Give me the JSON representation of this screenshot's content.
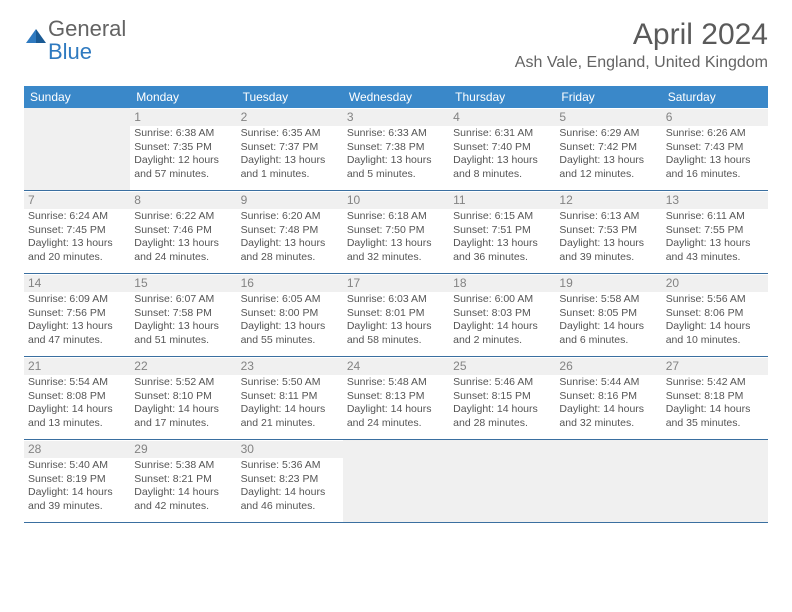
{
  "logo": {
    "part1": "General",
    "part2": "Blue"
  },
  "title": "April 2024",
  "location": "Ash Vale, England, United Kingdom",
  "header_color": "#3a88c9",
  "divider_color": "#3a6fa0",
  "daynum_bg": "#f0f0f0",
  "weekdays": [
    "Sunday",
    "Monday",
    "Tuesday",
    "Wednesday",
    "Thursday",
    "Friday",
    "Saturday"
  ],
  "start_offset": 1,
  "days": [
    {
      "n": 1,
      "sunrise": "6:38 AM",
      "sunset": "7:35 PM",
      "daylight": "12 hours and 57 minutes."
    },
    {
      "n": 2,
      "sunrise": "6:35 AM",
      "sunset": "7:37 PM",
      "daylight": "13 hours and 1 minutes."
    },
    {
      "n": 3,
      "sunrise": "6:33 AM",
      "sunset": "7:38 PM",
      "daylight": "13 hours and 5 minutes."
    },
    {
      "n": 4,
      "sunrise": "6:31 AM",
      "sunset": "7:40 PM",
      "daylight": "13 hours and 8 minutes."
    },
    {
      "n": 5,
      "sunrise": "6:29 AM",
      "sunset": "7:42 PM",
      "daylight": "13 hours and 12 minutes."
    },
    {
      "n": 6,
      "sunrise": "6:26 AM",
      "sunset": "7:43 PM",
      "daylight": "13 hours and 16 minutes."
    },
    {
      "n": 7,
      "sunrise": "6:24 AM",
      "sunset": "7:45 PM",
      "daylight": "13 hours and 20 minutes."
    },
    {
      "n": 8,
      "sunrise": "6:22 AM",
      "sunset": "7:46 PM",
      "daylight": "13 hours and 24 minutes."
    },
    {
      "n": 9,
      "sunrise": "6:20 AM",
      "sunset": "7:48 PM",
      "daylight": "13 hours and 28 minutes."
    },
    {
      "n": 10,
      "sunrise": "6:18 AM",
      "sunset": "7:50 PM",
      "daylight": "13 hours and 32 minutes."
    },
    {
      "n": 11,
      "sunrise": "6:15 AM",
      "sunset": "7:51 PM",
      "daylight": "13 hours and 36 minutes."
    },
    {
      "n": 12,
      "sunrise": "6:13 AM",
      "sunset": "7:53 PM",
      "daylight": "13 hours and 39 minutes."
    },
    {
      "n": 13,
      "sunrise": "6:11 AM",
      "sunset": "7:55 PM",
      "daylight": "13 hours and 43 minutes."
    },
    {
      "n": 14,
      "sunrise": "6:09 AM",
      "sunset": "7:56 PM",
      "daylight": "13 hours and 47 minutes."
    },
    {
      "n": 15,
      "sunrise": "6:07 AM",
      "sunset": "7:58 PM",
      "daylight": "13 hours and 51 minutes."
    },
    {
      "n": 16,
      "sunrise": "6:05 AM",
      "sunset": "8:00 PM",
      "daylight": "13 hours and 55 minutes."
    },
    {
      "n": 17,
      "sunrise": "6:03 AM",
      "sunset": "8:01 PM",
      "daylight": "13 hours and 58 minutes."
    },
    {
      "n": 18,
      "sunrise": "6:00 AM",
      "sunset": "8:03 PM",
      "daylight": "14 hours and 2 minutes."
    },
    {
      "n": 19,
      "sunrise": "5:58 AM",
      "sunset": "8:05 PM",
      "daylight": "14 hours and 6 minutes."
    },
    {
      "n": 20,
      "sunrise": "5:56 AM",
      "sunset": "8:06 PM",
      "daylight": "14 hours and 10 minutes."
    },
    {
      "n": 21,
      "sunrise": "5:54 AM",
      "sunset": "8:08 PM",
      "daylight": "14 hours and 13 minutes."
    },
    {
      "n": 22,
      "sunrise": "5:52 AM",
      "sunset": "8:10 PM",
      "daylight": "14 hours and 17 minutes."
    },
    {
      "n": 23,
      "sunrise": "5:50 AM",
      "sunset": "8:11 PM",
      "daylight": "14 hours and 21 minutes."
    },
    {
      "n": 24,
      "sunrise": "5:48 AM",
      "sunset": "8:13 PM",
      "daylight": "14 hours and 24 minutes."
    },
    {
      "n": 25,
      "sunrise": "5:46 AM",
      "sunset": "8:15 PM",
      "daylight": "14 hours and 28 minutes."
    },
    {
      "n": 26,
      "sunrise": "5:44 AM",
      "sunset": "8:16 PM",
      "daylight": "14 hours and 32 minutes."
    },
    {
      "n": 27,
      "sunrise": "5:42 AM",
      "sunset": "8:18 PM",
      "daylight": "14 hours and 35 minutes."
    },
    {
      "n": 28,
      "sunrise": "5:40 AM",
      "sunset": "8:19 PM",
      "daylight": "14 hours and 39 minutes."
    },
    {
      "n": 29,
      "sunrise": "5:38 AM",
      "sunset": "8:21 PM",
      "daylight": "14 hours and 42 minutes."
    },
    {
      "n": 30,
      "sunrise": "5:36 AM",
      "sunset": "8:23 PM",
      "daylight": "14 hours and 46 minutes."
    }
  ],
  "labels": {
    "sunrise": "Sunrise:",
    "sunset": "Sunset:",
    "daylight": "Daylight:"
  }
}
